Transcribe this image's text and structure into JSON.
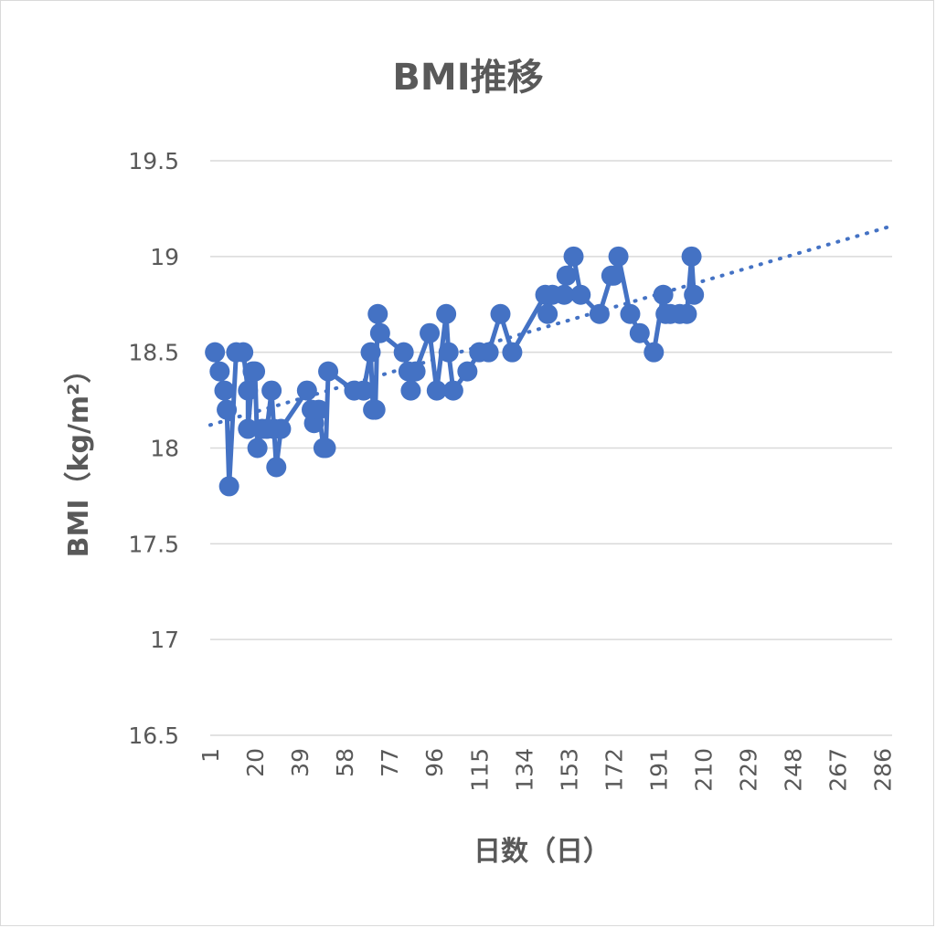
{
  "chart_data": {
    "type": "line",
    "title": "BMI推移",
    "xlabel": "日数（日）",
    "ylabel": "BMI（kg/m²）",
    "ylim": [
      16.5,
      19.5
    ],
    "yticks": [
      "16.5",
      "17",
      "17.5",
      "18",
      "18.5",
      "19",
      "19.5"
    ],
    "xlim": [
      1,
      290
    ],
    "xticks": [
      "1",
      "20",
      "39",
      "58",
      "77",
      "96",
      "115",
      "134",
      "153",
      "172",
      "191",
      "210",
      "229",
      "248",
      "267",
      "286"
    ],
    "grid": true,
    "legend": "none",
    "series": [
      {
        "color": "#4472c4",
        "points": [
          [
            3,
            18.5
          ],
          [
            5,
            18.4
          ],
          [
            7,
            18.3
          ],
          [
            8,
            18.2
          ],
          [
            9,
            17.8
          ],
          [
            12,
            18.5
          ],
          [
            15,
            18.5
          ],
          [
            17,
            18.3
          ],
          [
            17,
            18.1
          ],
          [
            19,
            18.4
          ],
          [
            20,
            18.4
          ],
          [
            21,
            18.0
          ],
          [
            23,
            18.1
          ],
          [
            25,
            18.1
          ],
          [
            27,
            18.3
          ],
          [
            28,
            18.1
          ],
          [
            29,
            17.9
          ],
          [
            31,
            18.1
          ],
          [
            42,
            18.3
          ],
          [
            44,
            18.2
          ],
          [
            45,
            18.13
          ],
          [
            47,
            18.2
          ],
          [
            49,
            18.0
          ],
          [
            50,
            18.0
          ],
          [
            51,
            18.4
          ],
          [
            62,
            18.3
          ],
          [
            66,
            18.3
          ],
          [
            69,
            18.5
          ],
          [
            70,
            18.2
          ],
          [
            71,
            18.2
          ],
          [
            72,
            18.7
          ],
          [
            73,
            18.6
          ],
          [
            83,
            18.5
          ],
          [
            85,
            18.4
          ],
          [
            86,
            18.3
          ],
          [
            88,
            18.4
          ],
          [
            94,
            18.6
          ],
          [
            97,
            18.3
          ],
          [
            101,
            18.7
          ],
          [
            102,
            18.5
          ],
          [
            104,
            18.3
          ],
          [
            110,
            18.4
          ],
          [
            115,
            18.5
          ],
          [
            119,
            18.5
          ],
          [
            124,
            18.7
          ],
          [
            129,
            18.5
          ],
          [
            143,
            18.8
          ],
          [
            144,
            18.7
          ],
          [
            146,
            18.8
          ],
          [
            151,
            18.8
          ],
          [
            152,
            18.9
          ],
          [
            155,
            19.0
          ],
          [
            158,
            18.8
          ],
          [
            166,
            18.7
          ],
          [
            171,
            18.9
          ],
          [
            172,
            18.9
          ],
          [
            174,
            19.0
          ],
          [
            179,
            18.7
          ],
          [
            183,
            18.6
          ],
          [
            189,
            18.5
          ],
          [
            193,
            18.8
          ],
          [
            194,
            18.7
          ],
          [
            196,
            18.7
          ],
          [
            200,
            18.7
          ],
          [
            203,
            18.7
          ],
          [
            205,
            19.0
          ],
          [
            206,
            18.8
          ]
        ],
        "trendline": {
          "type": "linear",
          "style": "dotted",
          "from": [
            1,
            18.12
          ],
          "to": [
            290,
            19.16
          ]
        }
      }
    ]
  }
}
